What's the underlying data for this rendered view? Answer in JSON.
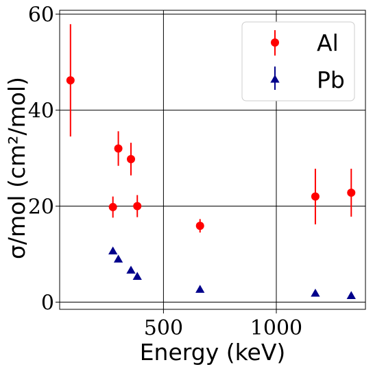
{
  "chart_data": {
    "type": "scatter",
    "xlabel": "Energy (keV)",
    "ylabel": "σ/mol (cm²/mol)",
    "xlim": [
      40,
      1395
    ],
    "ylim": [
      -1.5,
      60.8
    ],
    "x_ticks": [
      500,
      1000
    ],
    "y_ticks": [
      0,
      20,
      40,
      60
    ],
    "x_tick_labels": [
      "500",
      "1000"
    ],
    "y_tick_labels": [
      "0",
      "20",
      "40",
      "60"
    ],
    "grid": true,
    "legend_position": "top-right",
    "series": [
      {
        "name": "Al",
        "marker": "circle",
        "color": "#ff0000",
        "points": [
          {
            "x": 88,
            "y": 46.2,
            "err": 11.7
          },
          {
            "x": 276,
            "y": 19.8,
            "err": 2.2
          },
          {
            "x": 300,
            "y": 32.0,
            "err": 3.6
          },
          {
            "x": 356,
            "y": 29.8,
            "err": 3.4
          },
          {
            "x": 384,
            "y": 20.0,
            "err": 2.3
          },
          {
            "x": 662,
            "y": 15.9,
            "err": 1.4
          },
          {
            "x": 1173,
            "y": 22.0,
            "err": 5.8
          },
          {
            "x": 1332,
            "y": 22.8,
            "err": 5.0
          }
        ]
      },
      {
        "name": "Pb",
        "marker": "triangle",
        "color": "#00008b",
        "points": [
          {
            "x": 276,
            "y": 10.6
          },
          {
            "x": 300,
            "y": 8.9
          },
          {
            "x": 356,
            "y": 6.6
          },
          {
            "x": 384,
            "y": 5.3
          },
          {
            "x": 662,
            "y": 2.6
          },
          {
            "x": 1173,
            "y": 1.8
          },
          {
            "x": 1332,
            "y": 1.3
          }
        ]
      }
    ]
  }
}
